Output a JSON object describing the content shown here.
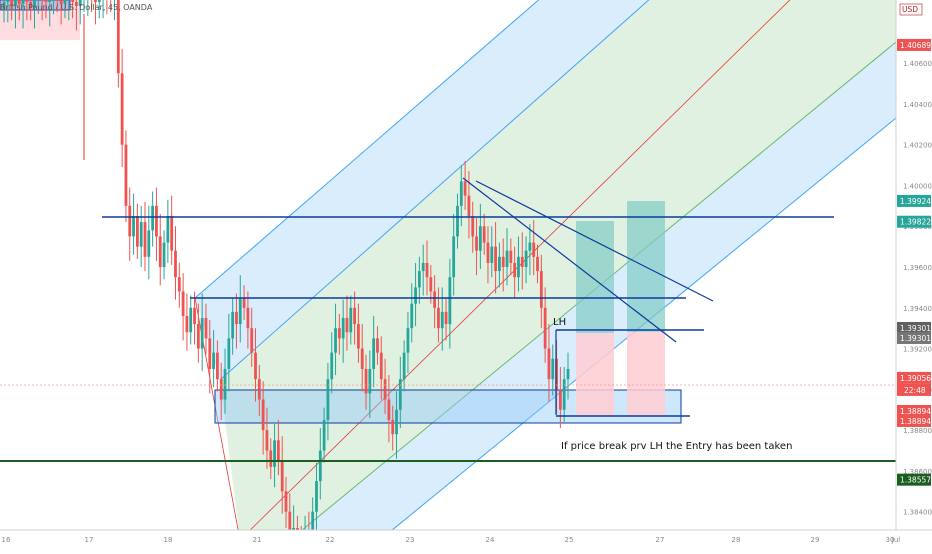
{
  "header": {
    "symbol_title": "British Pound / U.S. Dollar, 45, OANDA",
    "currency_badge": "USD"
  },
  "colors": {
    "up": "#26a69a",
    "down": "#ef5350",
    "blue_line": "#0d3b9b",
    "green_line": "#1b5e20",
    "channel_outer": "#bbdefb",
    "channel_inner": "#c8e6c9",
    "median": "#e53935",
    "target_box": "#80cbc4",
    "stop_box": "#ffcdd2",
    "zone_box": "#90caf9"
  },
  "chart_data": {
    "type": "candlestick",
    "title": "British Pound / U.S. Dollar, 45, OANDA",
    "xlabel": "",
    "ylabel": "",
    "x_ticks": [
      "16",
      "17",
      "18",
      "21",
      "22",
      "23",
      "24",
      "25",
      "27",
      "28",
      "29",
      "30",
      "Jul"
    ],
    "y_ticks": [
      "1.40689",
      "1.40600",
      "1.40400",
      "1.40200",
      "1.40000",
      "1.39800",
      "1.39600",
      "1.39400",
      "1.39200",
      "1.39000",
      "1.38800",
      "1.38600",
      "1.38400"
    ],
    "ylim": [
      1.3832,
      1.4088
    ],
    "price_labels": [
      {
        "value": 1.40689,
        "text": "1.40689",
        "kind": "red"
      },
      {
        "value": 1.39924,
        "text": "1.39924",
        "kind": "green"
      },
      {
        "value": 1.39822,
        "text": "1.39822",
        "kind": "green"
      },
      {
        "value": 1.39301,
        "text": "1.39301",
        "kind": "gray"
      },
      {
        "value": 1.39301,
        "text": "1.39301",
        "kind": "gray2"
      },
      {
        "value": 1.39056,
        "text": "1.39056",
        "kind": "red"
      },
      {
        "value": 1.38894,
        "text": "1.38894",
        "kind": "red"
      },
      {
        "value": 1.38894,
        "text": "1.38894",
        "kind": "red2"
      },
      {
        "value": 1.38557,
        "text": "1.38557",
        "kind": "darkgreen"
      }
    ],
    "countdown": "22:48",
    "series": [
      {
        "name": "GBPUSD",
        "closes": [
          1.409,
          1.4092,
          1.4088,
          1.4091,
          1.4089,
          1.4093,
          1.409,
          1.4087,
          1.4091,
          1.4094,
          1.4092,
          1.409,
          1.4093,
          1.4095,
          1.4091,
          1.4089,
          1.4092,
          1.4094,
          1.409,
          1.4088,
          1.4091,
          1.4093,
          1.4095,
          1.4092,
          1.409,
          1.4094,
          1.4096,
          1.4093,
          1.4091,
          1.4094,
          1.4055,
          1.402,
          1.399,
          1.3975,
          1.3985,
          1.397,
          1.3982,
          1.3965,
          1.3978,
          1.399,
          1.3975,
          1.396,
          1.3972,
          1.3985,
          1.3968,
          1.3955,
          1.3948,
          1.3936,
          1.3928,
          1.394,
          1.3932,
          1.392,
          1.3935,
          1.3925,
          1.391,
          1.3918,
          1.3905,
          1.3895,
          1.391,
          1.3925,
          1.3938,
          1.3932,
          1.3945,
          1.394,
          1.393,
          1.3918,
          1.3905,
          1.3895,
          1.388,
          1.387,
          1.3862,
          1.3875,
          1.3865,
          1.385,
          1.384,
          1.3828,
          1.3832,
          1.3825,
          1.3822,
          1.3828,
          1.3825,
          1.384,
          1.3855,
          1.387,
          1.3885,
          1.3905,
          1.3918,
          1.393,
          1.3925,
          1.3935,
          1.3928,
          1.394,
          1.3932,
          1.392,
          1.391,
          1.3898,
          1.391,
          1.3925,
          1.3918,
          1.3905,
          1.3895,
          1.3885,
          1.3878,
          1.389,
          1.3905,
          1.3918,
          1.393,
          1.3942,
          1.395,
          1.3958,
          1.3962,
          1.3955,
          1.3948,
          1.394,
          1.393,
          1.3938,
          1.3932,
          1.3955,
          1.3975,
          1.399,
          1.4002,
          1.3995,
          1.3985,
          1.3975,
          1.3968,
          1.398,
          1.3972,
          1.3962,
          1.397,
          1.3958,
          1.3965,
          1.396,
          1.3968,
          1.3962,
          1.3955,
          1.3965,
          1.396,
          1.3968,
          1.3972,
          1.3965,
          1.3958,
          1.394,
          1.392,
          1.3905,
          1.3915,
          1.39,
          1.389,
          1.3905,
          1.391
        ]
      }
    ],
    "annotations": [
      {
        "type": "text",
        "text": "LH"
      },
      {
        "type": "text",
        "text": "If price break prv LH the Entry has been taken"
      }
    ]
  }
}
